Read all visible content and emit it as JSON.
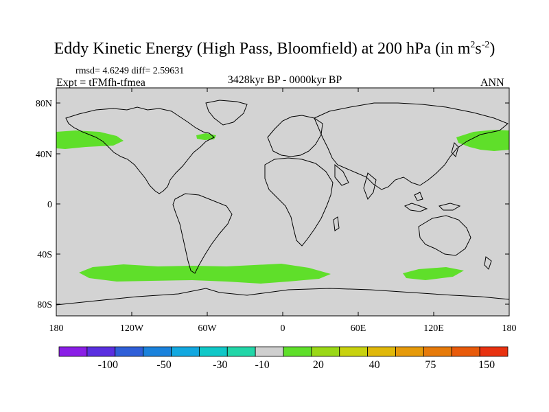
{
  "title_main": "Eddy Kinetic Energy (High Pass, Bloomfield) at 200 hPa (in m",
  "title_exp1": "2",
  "title_mid": "s",
  "title_exp2": "-2",
  "title_end": ")",
  "stats": "rmsd= 4.6249 diff= 2.59631",
  "expt": "Expt = tFMfh-tfmea",
  "period": "3428kyr BP - 0000kyr BP",
  "season": "ANN",
  "colors": {
    "ocean_land_neutral": "#d3d3d3",
    "anomaly_green": "#5fdf2a",
    "coast": "#000000"
  },
  "lat_labels": [
    "80N",
    "40N",
    "0",
    "40S",
    "80S"
  ],
  "lon_labels": [
    "180",
    "120W",
    "60W",
    "0",
    "60E",
    "120E",
    "180"
  ],
  "colorbar": {
    "colors": [
      "#8a1ee6",
      "#5a2fe0",
      "#2f5fd8",
      "#1a82dc",
      "#12a8e0",
      "#10c8c8",
      "#22d6a8",
      "#cfcfcf",
      "#5fdf2a",
      "#9ad816",
      "#c8d20e",
      "#e0b80a",
      "#e69a0a",
      "#e67a0a",
      "#e85a0a",
      "#e83210"
    ],
    "labels": [
      "-100",
      "-50",
      "-30",
      "-10",
      "20",
      "40",
      "75",
      "150"
    ]
  },
  "anomaly_regions": [
    "North Pacific jet (east)",
    "North Atlantic west",
    "North Pacific jet (west)",
    "Southern Ocean band (Atlantic-Indian)",
    "Southern Ocean (south of Australia)"
  ]
}
